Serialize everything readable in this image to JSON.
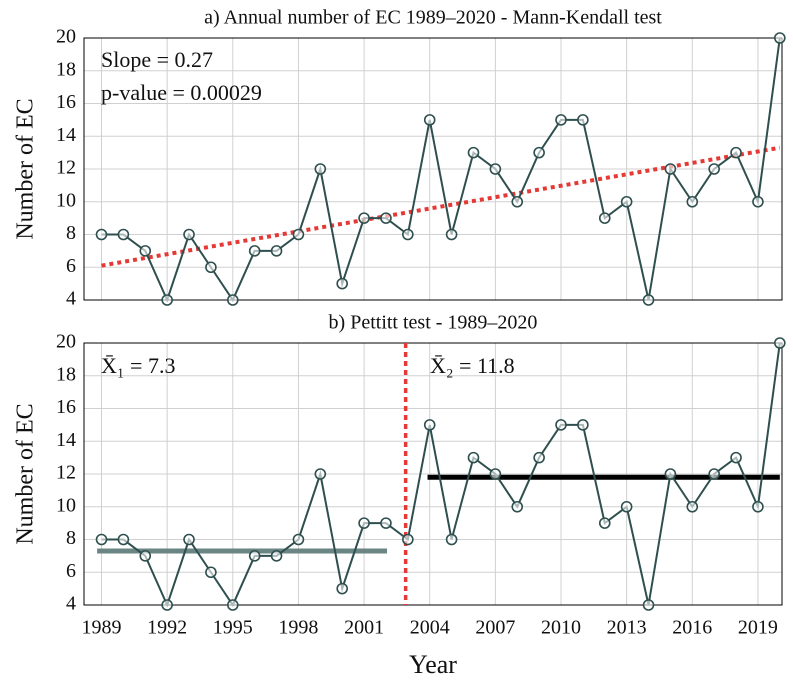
{
  "chart_data": [
    {
      "type": "line",
      "title": "a) Annual number of EC 1989–2020 - Mann-Kendall test",
      "ylabel": "Number of EC",
      "x": [
        1989,
        1990,
        1991,
        1992,
        1993,
        1994,
        1995,
        1996,
        1997,
        1998,
        1999,
        2000,
        2001,
        2002,
        2003,
        2004,
        2005,
        2006,
        2007,
        2008,
        2009,
        2010,
        2011,
        2012,
        2013,
        2014,
        2015,
        2016,
        2017,
        2018,
        2019,
        2020
      ],
      "series": [
        {
          "color": "#2f4f4f",
          "values": [
            8,
            8,
            7,
            4,
            8,
            6,
            4,
            7,
            7,
            8,
            12,
            5,
            9,
            9,
            8,
            15,
            8,
            13,
            12,
            10,
            13,
            15,
            15,
            9,
            10,
            4,
            12,
            10,
            12,
            13,
            10,
            20
          ]
        }
      ],
      "trend": {
        "x": [
          1989,
          2020
        ],
        "values": [
          6.1,
          13.3
        ],
        "color": "#e53935"
      },
      "annotations": [
        "Slope = 0.27",
        "p-value = 0.00029"
      ],
      "xlim": [
        1988.2,
        2020.1
      ],
      "ylim": [
        4,
        20
      ],
      "xticks": [
        1989,
        1992,
        1995,
        1998,
        2001,
        2004,
        2007,
        2010,
        2013,
        2016,
        2019
      ],
      "yticks": [
        4,
        6,
        8,
        10,
        12,
        14,
        16,
        18,
        20
      ],
      "grid": true,
      "xtick_labels": false
    },
    {
      "type": "line",
      "title": "b) Pettitt test - 1989–2020",
      "ylabel": "Number of EC",
      "xlabel": "Year",
      "x": [
        1989,
        1990,
        1991,
        1992,
        1993,
        1994,
        1995,
        1996,
        1997,
        1998,
        1999,
        2000,
        2001,
        2002,
        2003,
        2004,
        2005,
        2006,
        2007,
        2008,
        2009,
        2010,
        2011,
        2012,
        2013,
        2014,
        2015,
        2016,
        2017,
        2018,
        2019,
        2020
      ],
      "series": [
        {
          "color": "#2f4f4f",
          "values": [
            8,
            8,
            7,
            4,
            8,
            6,
            4,
            7,
            7,
            8,
            12,
            5,
            9,
            9,
            8,
            15,
            8,
            13,
            12,
            10,
            13,
            15,
            15,
            9,
            10,
            4,
            12,
            10,
            12,
            13,
            10,
            20
          ]
        }
      ],
      "segments": [
        {
          "x": [
            1988.8,
            2002.05
          ],
          "value": 7.3,
          "color": "#6b8585"
        },
        {
          "x": [
            2003.9,
            2020
          ],
          "value": 11.8,
          "color": "#000000"
        }
      ],
      "change_point": 2002.9,
      "change_color": "#e53935",
      "annotations": [
        "X̄₁ = 7.3",
        "X̄₂ = 11.8"
      ],
      "xlim": [
        1988.2,
        2020.1
      ],
      "ylim": [
        4,
        20
      ],
      "xticks": [
        1989,
        1992,
        1995,
        1998,
        2001,
        2004,
        2007,
        2010,
        2013,
        2016,
        2019
      ],
      "yticks": [
        4,
        6,
        8,
        10,
        12,
        14,
        16,
        18,
        20
      ],
      "grid": true,
      "xtick_labels": true
    }
  ]
}
